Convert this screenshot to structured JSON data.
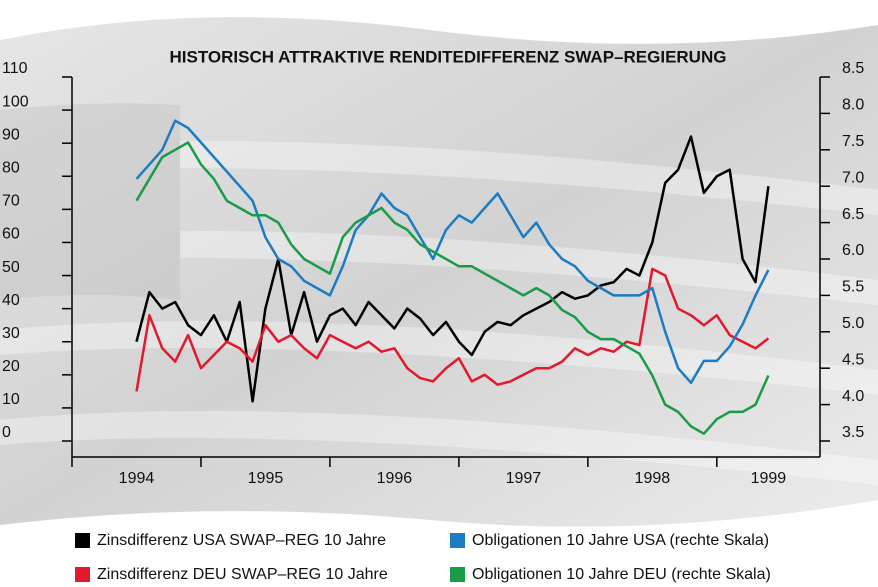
{
  "chart_data": {
    "type": "line",
    "title": "HISTORISCH ATTRAKTIVE RENDITEDIFFERENZ SWAP–REGIERUNG",
    "x": [
      1994.5,
      1994.6,
      1994.7,
      1994.8,
      1994.9,
      1995.0,
      1995.1,
      1995.2,
      1995.3,
      1995.4,
      1995.5,
      1995.6,
      1995.7,
      1995.8,
      1995.9,
      1996.0,
      1996.1,
      1996.2,
      1996.3,
      1996.4,
      1996.5,
      1996.6,
      1996.7,
      1996.8,
      1996.9,
      1997.0,
      1997.1,
      1997.2,
      1997.3,
      1997.4,
      1997.5,
      1997.6,
      1997.7,
      1997.8,
      1997.9,
      1998.0,
      1998.1,
      1998.2,
      1998.3,
      1998.4,
      1998.5,
      1998.6,
      1998.7,
      1998.8,
      1998.9,
      1999.0,
      1999.1,
      1999.2,
      1999.3,
      1999.4
    ],
    "xlim": [
      1994,
      1999.8
    ],
    "xticks": [
      1994,
      1995,
      1996,
      1997,
      1998,
      1999
    ],
    "ylim": [
      0,
      110
    ],
    "yticks": [
      0,
      10,
      20,
      30,
      40,
      50,
      60,
      70,
      80,
      90,
      100,
      110
    ],
    "y2lim": [
      3.5,
      8.5
    ],
    "y2ticks": [
      3.5,
      {
        "value": 4,
        "label": "4.0"
      },
      4.5,
      {
        "value": 5,
        "label": "5.0"
      },
      5.5,
      {
        "value": 6,
        "label": "6.0"
      },
      6.5,
      {
        "value": 7,
        "label": "7.0"
      },
      7.5,
      {
        "value": 8,
        "label": "8.0"
      },
      8.5
    ],
    "series": [
      {
        "name": "Zinsdifferenz USA SWAP–REG 10 Jahre",
        "color": "#000000",
        "values": [
          30,
          45,
          40,
          42,
          35,
          32,
          38,
          30,
          42,
          12,
          40,
          55,
          32,
          45,
          30,
          38,
          40,
          35,
          42,
          38,
          34,
          40,
          37,
          32,
          36,
          30,
          26,
          33,
          36,
          35,
          38,
          40,
          42,
          45,
          43,
          44,
          47,
          48,
          52,
          50,
          60,
          78,
          82,
          92,
          75,
          80,
          82,
          55,
          48,
          77
        ]
      },
      {
        "name": "Zinsdifferenz DEU SWAP–REG 10 Jahre",
        "color": "#e3182d",
        "values": [
          15,
          38,
          28,
          24,
          32,
          22,
          26,
          30,
          28,
          24,
          35,
          30,
          32,
          28,
          25,
          32,
          30,
          28,
          30,
          27,
          28,
          22,
          19,
          18,
          22,
          25,
          18,
          20,
          17,
          18,
          20,
          22,
          22,
          24,
          28,
          26,
          28,
          27,
          30,
          29,
          52,
          50,
          40,
          38,
          35,
          38,
          32,
          30,
          28,
          31
        ]
      },
      {
        "name": "Obligationen 10 Jahre USA (rechte Skala)",
        "color": "#1a7cc1",
        "axis": "y2",
        "values": [
          7.1,
          7.3,
          7.5,
          7.9,
          7.8,
          7.6,
          7.4,
          7.2,
          7.0,
          6.8,
          6.3,
          6.0,
          5.9,
          5.7,
          5.6,
          5.5,
          5.9,
          6.4,
          6.6,
          6.9,
          6.7,
          6.6,
          6.3,
          6.0,
          6.4,
          6.6,
          6.5,
          6.7,
          6.9,
          6.6,
          6.3,
          6.5,
          6.2,
          6.0,
          5.9,
          5.7,
          5.6,
          5.5,
          5.5,
          5.5,
          5.6,
          5.0,
          4.5,
          4.3,
          4.6,
          4.6,
          4.8,
          5.1,
          5.5,
          5.85
        ]
      },
      {
        "name": "Obligationen 10 Jahre DEU (rechte Skala)",
        "color": "#1a9b48",
        "axis": "y2",
        "values": [
          6.8,
          7.1,
          7.4,
          7.5,
          7.6,
          7.3,
          7.1,
          6.8,
          6.7,
          6.6,
          6.6,
          6.5,
          6.2,
          6.0,
          5.9,
          5.8,
          6.3,
          6.5,
          6.6,
          6.7,
          6.5,
          6.4,
          6.2,
          6.1,
          6.0,
          5.9,
          5.9,
          5.8,
          5.7,
          5.6,
          5.5,
          5.6,
          5.5,
          5.3,
          5.2,
          5.0,
          4.9,
          4.9,
          4.8,
          4.7,
          4.4,
          4.0,
          3.9,
          3.7,
          3.6,
          3.8,
          3.9,
          3.9,
          4.0,
          4.4
        ]
      }
    ]
  }
}
